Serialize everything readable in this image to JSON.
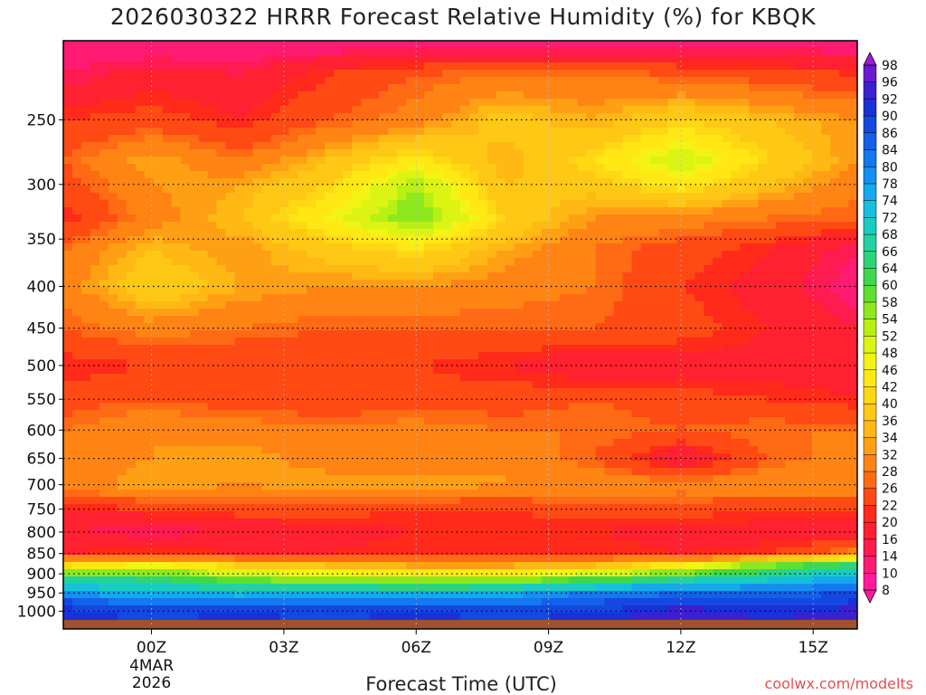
{
  "chart_data": {
    "type": "heatmap",
    "title": "2026030322 HRRR Forecast Relative Humidity (%) for KBQK",
    "xlabel": "Forecast Time (UTC)",
    "ylabel": "",
    "credit": "coolwx.com/modelts",
    "x_ticks": [
      {
        "label": "00Z",
        "hour": 0,
        "sub": [
          "4MAR",
          "2026"
        ]
      },
      {
        "label": "03Z",
        "hour": 3
      },
      {
        "label": "06Z",
        "hour": 6
      },
      {
        "label": "09Z",
        "hour": 9
      },
      {
        "label": "12Z",
        "hour": 12
      },
      {
        "label": "15Z",
        "hour": 15
      }
    ],
    "xlim": [
      -2,
      16
    ],
    "y_ticks": [
      250,
      300,
      350,
      400,
      450,
      500,
      550,
      600,
      650,
      700,
      750,
      800,
      850,
      900,
      950,
      1000
    ],
    "ylim": [
      200,
      1025
    ],
    "y_scale": "log",
    "grid": true,
    "colorbar": {
      "levels": [
        8,
        10,
        14,
        16,
        20,
        22,
        26,
        28,
        32,
        34,
        36,
        40,
        42,
        46,
        48,
        52,
        54,
        58,
        60,
        64,
        66,
        68,
        72,
        74,
        78,
        80,
        84,
        86,
        90,
        92,
        96,
        98
      ],
      "colors": [
        "#ff1a9c",
        "#ff1a72",
        "#ff1a50",
        "#ff2030",
        "#ff2a1a",
        "#ff4a14",
        "#ff6a14",
        "#ff8414",
        "#ffa014",
        "#ffb814",
        "#ffc814",
        "#ffd814",
        "#ffe814",
        "#f4f414",
        "#dcf414",
        "#b8f014",
        "#8ee81e",
        "#5ee030",
        "#3ed84e",
        "#2ed47a",
        "#22d2a0",
        "#18ccc2",
        "#16c0dc",
        "#14a8ec",
        "#1490f0",
        "#1478f0",
        "#1460e8",
        "#1448e0",
        "#1a30d8",
        "#3a20d0",
        "#6a1ad0",
        "#9a1ad8"
      ]
    },
    "series": [
      {
        "pressure": 200,
        "values": [
          10,
          10,
          10,
          10,
          10,
          10,
          10,
          10,
          10,
          10
        ]
      },
      {
        "pressure": 220,
        "values": [
          14,
          18,
          16,
          22,
          26,
          28,
          28,
          26,
          24,
          22
        ]
      },
      {
        "pressure": 250,
        "values": [
          22,
          24,
          20,
          26,
          30,
          38,
          34,
          40,
          36,
          32
        ]
      },
      {
        "pressure": 280,
        "values": [
          26,
          34,
          28,
          36,
          44,
          34,
          42,
          52,
          40,
          32
        ]
      },
      {
        "pressure": 300,
        "values": [
          24,
          32,
          34,
          40,
          54,
          36,
          38,
          44,
          36,
          30
        ]
      },
      {
        "pressure": 330,
        "values": [
          20,
          30,
          36,
          46,
          58,
          40,
          32,
          30,
          28,
          26
        ]
      },
      {
        "pressure": 360,
        "values": [
          28,
          36,
          32,
          38,
          42,
          34,
          28,
          24,
          20,
          14
        ]
      },
      {
        "pressure": 400,
        "values": [
          30,
          40,
          34,
          32,
          32,
          30,
          28,
          22,
          18,
          12
        ]
      },
      {
        "pressure": 450,
        "values": [
          26,
          30,
          28,
          26,
          26,
          26,
          26,
          24,
          20,
          16
        ]
      },
      {
        "pressure": 500,
        "values": [
          20,
          22,
          22,
          22,
          22,
          20,
          16,
          18,
          18,
          18
        ]
      },
      {
        "pressure": 550,
        "values": [
          24,
          26,
          24,
          22,
          24,
          24,
          26,
          24,
          22,
          20
        ]
      },
      {
        "pressure": 600,
        "values": [
          28,
          32,
          30,
          30,
          30,
          28,
          28,
          26,
          28,
          28
        ]
      },
      {
        "pressure": 650,
        "values": [
          30,
          32,
          34,
          30,
          30,
          32,
          26,
          16,
          26,
          30
        ]
      },
      {
        "pressure": 700,
        "values": [
          30,
          34,
          32,
          34,
          34,
          32,
          32,
          30,
          32,
          32
        ]
      },
      {
        "pressure": 750,
        "values": [
          20,
          22,
          24,
          24,
          22,
          22,
          24,
          24,
          22,
          22
        ]
      },
      {
        "pressure": 800,
        "values": [
          16,
          14,
          16,
          18,
          20,
          20,
          20,
          18,
          18,
          16
        ]
      },
      {
        "pressure": 850,
        "values": [
          20,
          22,
          20,
          20,
          22,
          22,
          22,
          20,
          22,
          30
        ]
      },
      {
        "pressure": 880,
        "values": [
          42,
          48,
          40,
          36,
          34,
          34,
          36,
          46,
          58,
          66
        ]
      },
      {
        "pressure": 910,
        "values": [
          66,
          64,
          56,
          54,
          52,
          52,
          58,
          64,
          70,
          74
        ]
      },
      {
        "pressure": 950,
        "values": [
          78,
          74,
          72,
          76,
          72,
          76,
          80,
          84,
          84,
          86
        ]
      },
      {
        "pressure": 985,
        "values": [
          90,
          86,
          88,
          86,
          88,
          86,
          88,
          92,
          90,
          92
        ]
      },
      {
        "pressure": 1025,
        "values": [
          92,
          90,
          92,
          90,
          92,
          90,
          92,
          94,
          92,
          94
        ]
      }
    ],
    "series_hours": [
      -2,
      0,
      2,
      4,
      6,
      8,
      10,
      12,
      14,
      16
    ]
  }
}
